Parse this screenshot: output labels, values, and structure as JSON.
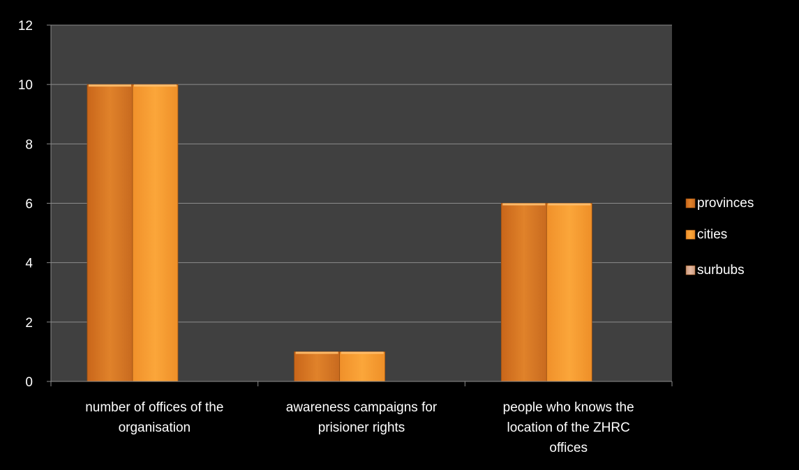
{
  "chart_data": {
    "type": "bar",
    "categories": [
      [
        "number of offices of the",
        "organisation"
      ],
      [
        "awareness campaigns for",
        "prisioner rights"
      ],
      [
        "people who knows the",
        "location of the ZHRC",
        "offices"
      ]
    ],
    "series": [
      {
        "name": "provinces",
        "values": [
          10,
          1,
          6
        ],
        "color": "#dd7a22"
      },
      {
        "name": "cities",
        "values": [
          10,
          1,
          6
        ],
        "color": "#f59a2c"
      },
      {
        "name": "surbubs",
        "values": [
          0,
          0,
          0
        ],
        "color": "#d9a98e"
      }
    ],
    "ylim": [
      0,
      12
    ],
    "yticks": [
      0,
      2,
      4,
      6,
      8,
      10,
      12
    ],
    "grid": true,
    "legend": "right",
    "colors": {
      "background": "#000000",
      "plot_area": "#404040",
      "gridline": "#8c8c8c",
      "text": "#ffffff"
    }
  }
}
